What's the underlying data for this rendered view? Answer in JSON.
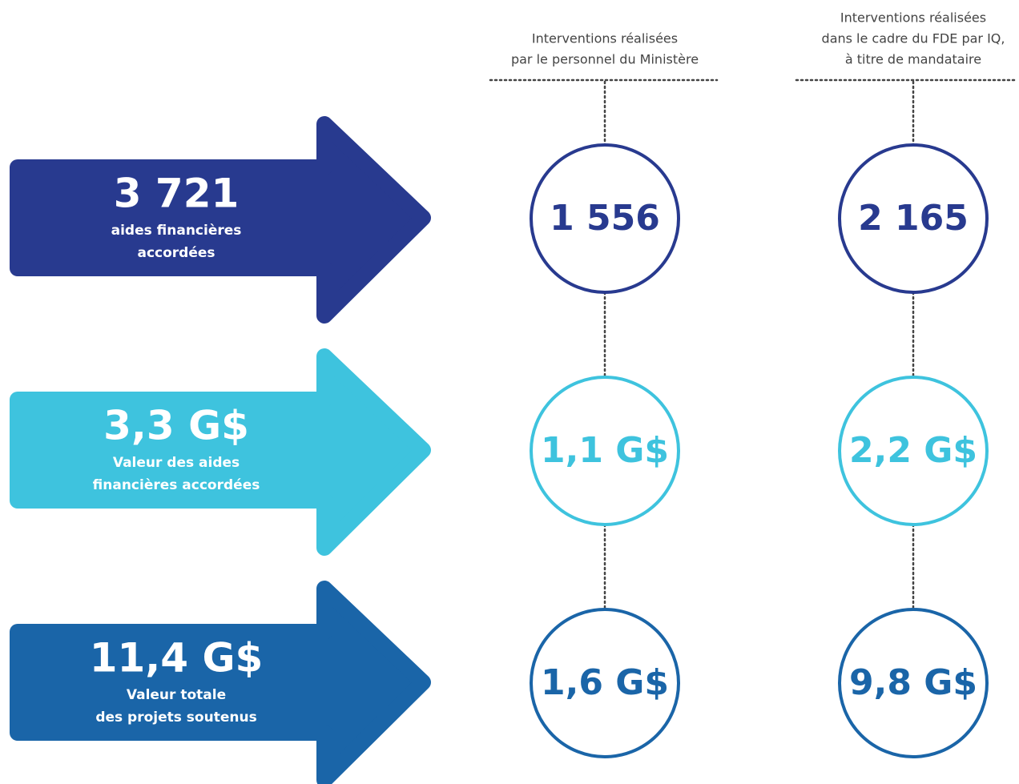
{
  "columns": [
    {
      "lines": [
        "Interventions réalisées",
        "par le personnel du Ministère"
      ]
    },
    {
      "lines": [
        "Interventions réalisées",
        "dans le cadre du FDE par IQ,",
        "à titre de mandataire"
      ]
    }
  ],
  "rows": [
    {
      "value": "3 721",
      "lines": [
        "aides financières",
        "accordées"
      ],
      "cells": [
        "1 556",
        "2 165"
      ]
    },
    {
      "value": "3,3 G$",
      "lines": [
        "Valeur des aides",
        "financières accordées"
      ],
      "cells": [
        "1,1 G$",
        "2,2 G$"
      ]
    },
    {
      "value": "11,4 G$",
      "lines": [
        "Valeur totale",
        "des projets soutenus"
      ],
      "cells": [
        "1,6 G$",
        "9,8 G$"
      ]
    }
  ]
}
